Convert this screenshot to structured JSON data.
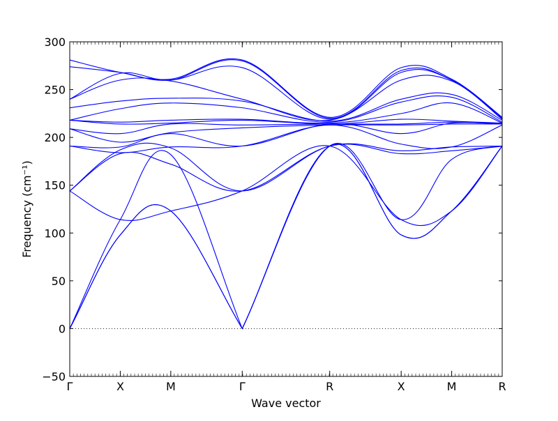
{
  "chart_data": {
    "type": "line",
    "xlabel": "Wave vector",
    "ylabel": "Frequency (cm⁻¹)",
    "ylim": [
      -50,
      300
    ],
    "yticks": [
      -50,
      0,
      50,
      100,
      150,
      200,
      250,
      300
    ],
    "grid": false,
    "line_color": "#0000ff",
    "zero_line": {
      "y": 0,
      "style": "dotted",
      "color": "#000000"
    },
    "x_points": [
      {
        "label": "Γ",
        "x": 0
      },
      {
        "label": "X",
        "x": 0.5
      },
      {
        "label": "M",
        "x": 1.0
      },
      {
        "label": "Γ",
        "x": 1.707
      },
      {
        "label": "R",
        "x": 2.573
      },
      {
        "label": "X",
        "x": 3.28
      },
      {
        "label": "M",
        "x": 3.78
      },
      {
        "label": "R",
        "x": 4.28
      }
    ],
    "series": [
      {
        "values": [
          0,
          98,
          123,
          0,
          191,
          98,
          123,
          191
        ]
      },
      {
        "values": [
          0,
          98,
          123,
          0,
          191,
          98,
          123,
          191
        ]
      },
      {
        "values": [
          0,
          114,
          182,
          0,
          191,
          114,
          177,
          191
        ]
      },
      {
        "values": [
          144,
          114,
          123,
          144,
          191,
          114,
          123,
          191
        ]
      },
      {
        "values": [
          144,
          183,
          172,
          144,
          191,
          183,
          186,
          191
        ]
      },
      {
        "values": [
          144,
          187,
          189,
          144,
          191,
          186,
          190,
          191
        ]
      },
      {
        "values": [
          191,
          184,
          190,
          191,
          213,
          193,
          190,
          213
        ]
      },
      {
        "values": [
          191,
          190,
          204,
          191,
          214,
          204,
          215,
          214
        ]
      },
      {
        "values": [
          209,
          195,
          205,
          210,
          213,
          213,
          214,
          214
        ]
      },
      {
        "values": [
          209,
          204,
          214,
          213,
          214,
          214,
          216,
          214
        ]
      },
      {
        "values": [
          218,
          214,
          215,
          218,
          214,
          219,
          217,
          215
        ]
      },
      {
        "values": [
          218,
          216,
          218,
          219,
          215,
          225,
          236,
          215
        ]
      },
      {
        "values": [
          218,
          230,
          236,
          231,
          216,
          237,
          242,
          216
        ]
      },
      {
        "values": [
          231,
          238,
          241,
          238,
          217,
          240,
          245,
          218
        ]
      },
      {
        "values": [
          240,
          260,
          259,
          240,
          218,
          260,
          259,
          219
        ]
      },
      {
        "values": [
          240,
          267,
          260,
          273,
          219,
          268,
          260,
          220
        ]
      },
      {
        "values": [
          274,
          268,
          260,
          280,
          220,
          270,
          260,
          220
        ]
      },
      {
        "values": [
          281,
          268,
          261,
          281,
          221,
          273,
          261,
          221
        ]
      }
    ]
  }
}
